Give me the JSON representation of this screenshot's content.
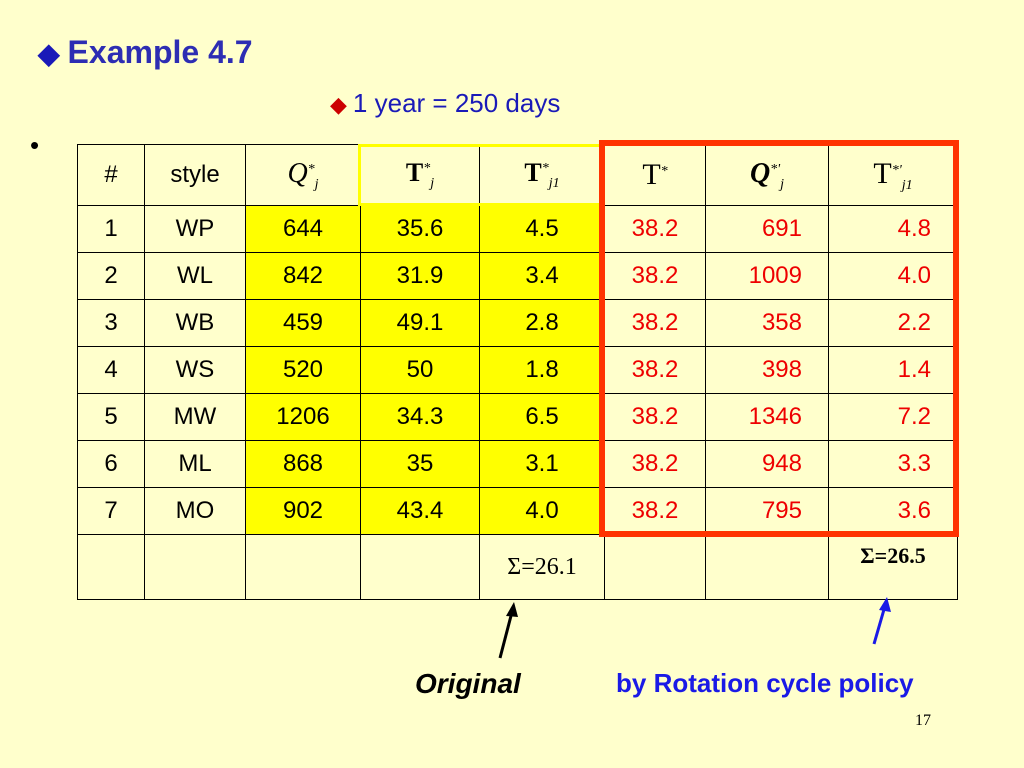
{
  "title": "Example 4.7",
  "subtitle": "1 year = 250 days",
  "bullet": "•",
  "table": {
    "headers": {
      "num": "#",
      "style": "style",
      "q": {
        "base": "Q",
        "sup": "*",
        "sub": "j"
      },
      "t": {
        "base": "T",
        "sup": "*",
        "sub": "j"
      },
      "t1": {
        "base": "T",
        "sup": "*",
        "sub": "j1"
      },
      "tstar": {
        "base": "T",
        "sup": "*"
      },
      "qp": {
        "base": "Q",
        "sup": "*'",
        "sub": "j"
      },
      "t1p": {
        "base": "T",
        "sup": "*'",
        "sub": "j1"
      }
    },
    "rows": [
      {
        "num": "1",
        "style": "WP",
        "q": "644",
        "t": "35.6",
        "t1": "4.5",
        "tstar": "38.2",
        "qp": "691",
        "t1p": "4.8"
      },
      {
        "num": "2",
        "style": "WL",
        "q": "842",
        "t": "31.9",
        "t1": "3.4",
        "tstar": "38.2",
        "qp": "1009",
        "t1p": "4.0"
      },
      {
        "num": "3",
        "style": "WB",
        "q": "459",
        "t": "49.1",
        "t1": "2.8",
        "tstar": "38.2",
        "qp": "358",
        "t1p": "2.2"
      },
      {
        "num": "4",
        "style": "WS",
        "q": "520",
        "t": "50",
        "t1": "1.8",
        "tstar": "38.2",
        "qp": "398",
        "t1p": "1.4"
      },
      {
        "num": "5",
        "style": "MW",
        "q": "1206",
        "t": "34.3",
        "t1": "6.5",
        "tstar": "38.2",
        "qp": "1346",
        "t1p": "7.2"
      },
      {
        "num": "6",
        "style": "ML",
        "q": "868",
        "t": "35",
        "t1": "3.1",
        "tstar": "38.2",
        "qp": "948",
        "t1p": "3.3"
      },
      {
        "num": "7",
        "style": "MO",
        "q": "902",
        "t": "43.4",
        "t1": "4.0",
        "tstar": "38.2",
        "qp": "795",
        "t1p": "3.6"
      }
    ],
    "sum_original": "Σ=26.1",
    "sum_rotation": "Σ=26.5"
  },
  "labels": {
    "original": "Original",
    "rotation": "by Rotation cycle policy"
  },
  "page_number": "17",
  "colors": {
    "background": "#FFFFCC",
    "highlight": "#FFFF00",
    "frame": "#FF3300",
    "red_text": "#EE0000",
    "blue_text": "#1A1AE6"
  }
}
